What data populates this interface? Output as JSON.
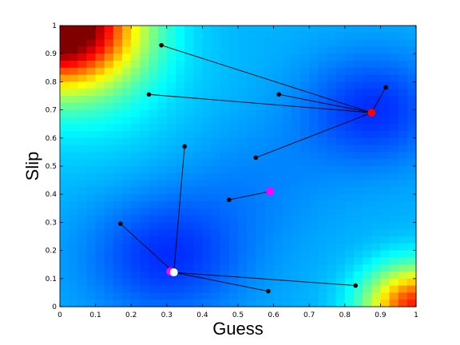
{
  "chart_data": {
    "type": "scatter",
    "title": "",
    "xlabel": "Guess",
    "ylabel": "Slip",
    "xlim": [
      0,
      1
    ],
    "ylim": [
      0,
      1
    ],
    "xticks": [
      "0",
      "0.1",
      "0.2",
      "0.3",
      "0.4",
      "0.5",
      "0.6",
      "0.7",
      "0.8",
      "0.9",
      "1"
    ],
    "yticks": [
      "0",
      "0.1",
      "0.2",
      "0.3",
      "0.4",
      "0.5",
      "0.6",
      "0.7",
      "0.8",
      "0.9",
      "1"
    ],
    "background": {
      "type": "heatmap",
      "colormap": "jet",
      "grid_size": 40,
      "high_regions": [
        "top-left corner",
        "bottom-right corner"
      ],
      "low_regions": [
        "around (0.88, 0.69)",
        "around (0.30, 0.18)"
      ]
    },
    "centers": [
      {
        "x": 0.875,
        "y": 0.69,
        "color": "#ff0000"
      },
      {
        "x": 0.59,
        "y": 0.41,
        "color": "#ff00ff"
      },
      {
        "x": 0.31,
        "y": 0.125,
        "color": "#ff00ff"
      },
      {
        "x": 0.32,
        "y": 0.122,
        "color": "#ffffff"
      }
    ],
    "points": [
      {
        "x": 0.285,
        "y": 0.93,
        "center": 0
      },
      {
        "x": 0.25,
        "y": 0.755,
        "center": 0
      },
      {
        "x": 0.615,
        "y": 0.755,
        "center": 0
      },
      {
        "x": 0.915,
        "y": 0.78,
        "center": 0
      },
      {
        "x": 0.55,
        "y": 0.53,
        "center": 0
      },
      {
        "x": 0.475,
        "y": 0.38,
        "center": 1
      },
      {
        "x": 0.35,
        "y": 0.57,
        "center": 3
      },
      {
        "x": 0.17,
        "y": 0.295,
        "center": 3
      },
      {
        "x": 0.585,
        "y": 0.055,
        "center": 3
      },
      {
        "x": 0.83,
        "y": 0.075,
        "center": 3
      }
    ],
    "point_color": "#000000",
    "line_color": "#000000",
    "grid": false,
    "legend": "none"
  }
}
